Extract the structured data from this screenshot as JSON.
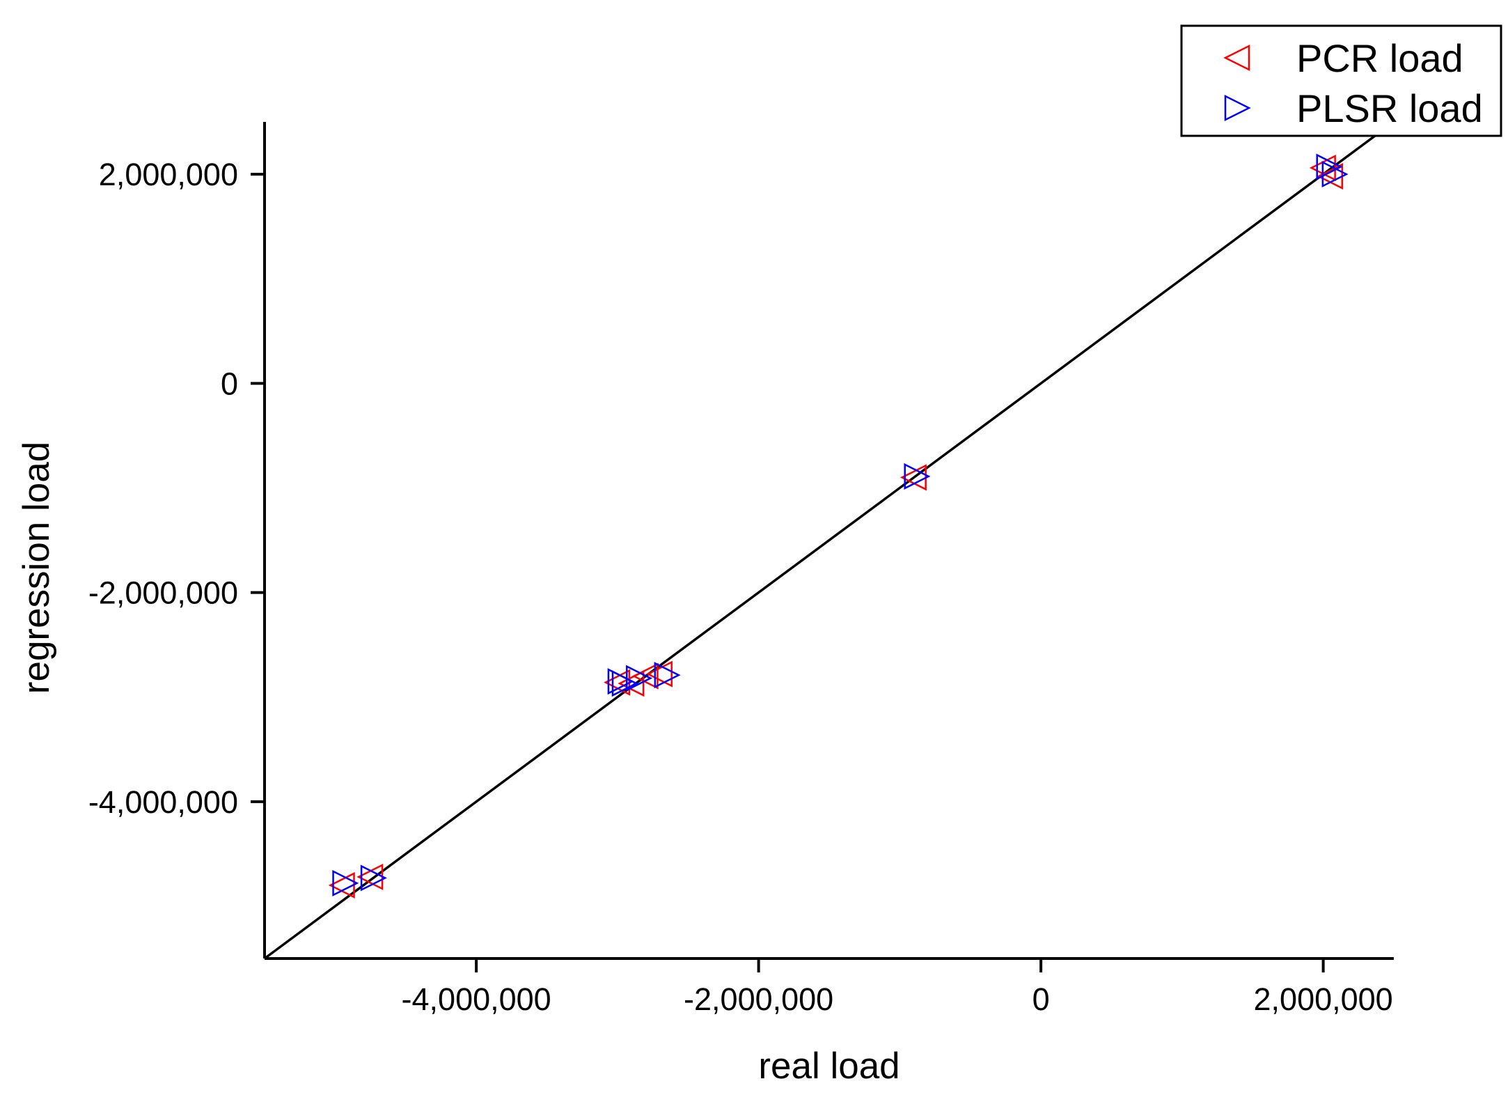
{
  "chart_data": {
    "type": "scatter",
    "title": "",
    "xlabel": "real load",
    "ylabel": "regression load",
    "xlim": [
      -5500000,
      2500000
    ],
    "ylim": [
      -5500000,
      2500000
    ],
    "xticks": [
      -4000000,
      -2000000,
      0,
      2000000
    ],
    "yticks": [
      -4000000,
      -2000000,
      0,
      2000000
    ],
    "xtick_labels": [
      "-4,000,000",
      "-2,000,000",
      "0",
      "2,000,000"
    ],
    "ytick_labels": [
      "-4,000,000",
      "-2,000,000",
      "0",
      "2,000,000"
    ],
    "grid": false,
    "legend_position": "top-right",
    "reference_line": {
      "x": [
        -5500000,
        2500000
      ],
      "y": [
        -5500000,
        2500000
      ],
      "color": "#000000"
    },
    "series": [
      {
        "name": "PCR load",
        "marker": "triangle-left",
        "color": "#ff0000",
        "points": [
          {
            "x": -4950000,
            "y": -4800000
          },
          {
            "x": -4750000,
            "y": -4720000
          },
          {
            "x": -3000000,
            "y": -2860000
          },
          {
            "x": -2900000,
            "y": -2870000
          },
          {
            "x": -2800000,
            "y": -2800000
          },
          {
            "x": -2700000,
            "y": -2780000
          },
          {
            "x": -900000,
            "y": -900000
          },
          {
            "x": 2000000,
            "y": 2060000
          },
          {
            "x": 2050000,
            "y": 1980000
          }
        ]
      },
      {
        "name": "PLSR load",
        "marker": "triangle-right",
        "color": "#0000ff",
        "points": [
          {
            "x": -4930000,
            "y": -4780000
          },
          {
            "x": -4730000,
            "y": -4730000
          },
          {
            "x": -2980000,
            "y": -2850000
          },
          {
            "x": -2950000,
            "y": -2870000
          },
          {
            "x": -2850000,
            "y": -2820000
          },
          {
            "x": -2650000,
            "y": -2790000
          },
          {
            "x": -880000,
            "y": -890000
          },
          {
            "x": 2040000,
            "y": 2070000
          },
          {
            "x": 2080000,
            "y": 2000000
          }
        ]
      }
    ]
  }
}
